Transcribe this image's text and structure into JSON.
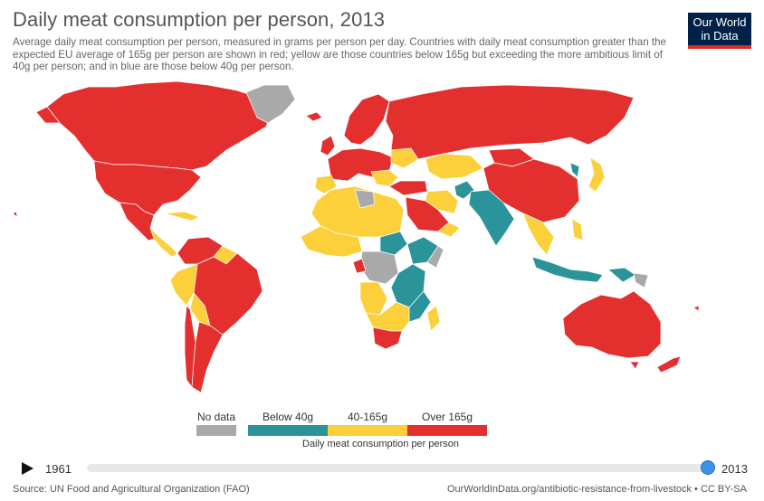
{
  "title": "Daily meat consumption per person, 2013",
  "subtitle": "Average daily meat consumption per person, measured in grams per person per day. Countries with daily meat consumption greater than the expected EU average of 165g per person are shown in red; yellow are those countries below 165g but exceeding the more ambitious limit of 40g per person; and in blue are those below 40g per person.",
  "logo": {
    "line1": "Our World",
    "line2": "in Data"
  },
  "colors": {
    "over": "#e3302f",
    "mid": "#fcd03a",
    "below": "#2b939a",
    "nodata": "#a9a9a9",
    "ocean": "#ffffff",
    "border": "#ffffff"
  },
  "legend": {
    "nodata_label": "No data",
    "below_label": "Below 40g",
    "mid_label": "40-165g",
    "over_label": "Over 165g",
    "caption": "Daily meat consumption per person"
  },
  "timeline": {
    "start_year": "1961",
    "end_year": "2013",
    "selected_year": 2013
  },
  "footer": {
    "source": "Source: UN Food and Agricultural Organization (FAO)",
    "link": "OurWorldInData.org/antibiotic-resistance-from-livestock • CC BY-SA"
  }
}
